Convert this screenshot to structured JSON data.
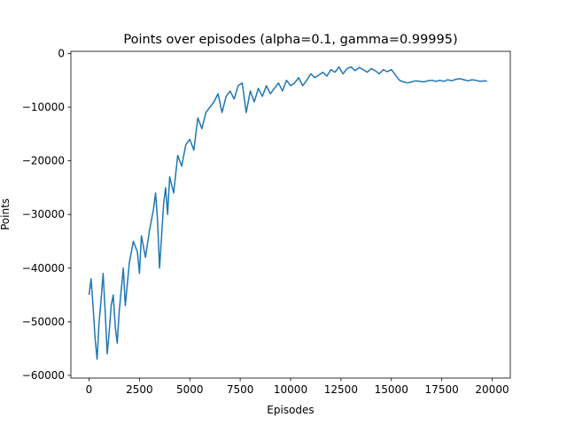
{
  "chart_data": {
    "type": "line",
    "title": "Points over episodes (alpha=0.1, gamma=0.99995)",
    "xlabel": "Episodes",
    "ylabel": "Points",
    "xlim": [
      -900,
      20900
    ],
    "ylim": [
      -60500,
      400
    ],
    "grid": false,
    "legend": "none",
    "xticks": [
      0,
      2500,
      5000,
      7500,
      10000,
      12500,
      15000,
      17500,
      20000
    ],
    "yticks": [
      0,
      -10000,
      -20000,
      -30000,
      -40000,
      -50000,
      -60000
    ],
    "xtick_labels": [
      "0",
      "2500",
      "5000",
      "7500",
      "10000",
      "12500",
      "15000",
      "17500",
      "20000"
    ],
    "ytick_labels": [
      "0",
      "−10000",
      "−20000",
      "−30000",
      "−40000",
      "−50000",
      "−60000"
    ],
    "series": [
      {
        "color": "#1f77b4",
        "x": [
          0,
          100,
          200,
          300,
          400,
          500,
          600,
          700,
          800,
          900,
          1000,
          1100,
          1200,
          1300,
          1400,
          1500,
          1600,
          1700,
          1800,
          1900,
          2000,
          2200,
          2400,
          2500,
          2600,
          2800,
          3000,
          3200,
          3300,
          3400,
          3500,
          3600,
          3700,
          3800,
          3900,
          4000,
          4200,
          4400,
          4600,
          4800,
          5000,
          5200,
          5400,
          5600,
          5800,
          6000,
          6200,
          6400,
          6600,
          6800,
          7000,
          7200,
          7400,
          7600,
          7800,
          8000,
          8200,
          8400,
          8600,
          8800,
          9000,
          9200,
          9400,
          9600,
          9800,
          10000,
          10200,
          10400,
          10600,
          10800,
          11000,
          11200,
          11400,
          11600,
          11800,
          12000,
          12200,
          12400,
          12600,
          12800,
          13000,
          13200,
          13400,
          13600,
          13800,
          14000,
          14200,
          14400,
          14600,
          14800,
          15000,
          15200,
          15400,
          15600,
          15800,
          16000,
          16200,
          16400,
          16600,
          16800,
          17000,
          17200,
          17400,
          17600,
          17800,
          18000,
          18200,
          18400,
          18600,
          18800,
          19000,
          19200,
          19400,
          19600,
          19750
        ],
        "y": [
          -45000,
          -42000,
          -47000,
          -53000,
          -57000,
          -50000,
          -46000,
          -41000,
          -48000,
          -56000,
          -52000,
          -47000,
          -45000,
          -51000,
          -54000,
          -48000,
          -44000,
          -40000,
          -47000,
          -43000,
          -39000,
          -35000,
          -37000,
          -41000,
          -34000,
          -38000,
          -33000,
          -29000,
          -26000,
          -31000,
          -40000,
          -34000,
          -28000,
          -25000,
          -30000,
          -23000,
          -26000,
          -19000,
          -21000,
          -17000,
          -16000,
          -18000,
          -12000,
          -14000,
          -11000,
          -10000,
          -9000,
          -7500,
          -11000,
          -8000,
          -7000,
          -8500,
          -6000,
          -5500,
          -11000,
          -7000,
          -9000,
          -6500,
          -8000,
          -6000,
          -7500,
          -6500,
          -5500,
          -7000,
          -5000,
          -6000,
          -5500,
          -4500,
          -6000,
          -5000,
          -3800,
          -4500,
          -4000,
          -3500,
          -4200,
          -3000,
          -3500,
          -2500,
          -3800,
          -2800,
          -2500,
          -3200,
          -2600,
          -3000,
          -3500,
          -2800,
          -3200,
          -3800,
          -3000,
          -3400,
          -3000,
          -4000,
          -5000,
          -5300,
          -5500,
          -5300,
          -5100,
          -5200,
          -5300,
          -5100,
          -5000,
          -5200,
          -5000,
          -5200,
          -4900,
          -5100,
          -4800,
          -4700,
          -4900,
          -5100,
          -4900,
          -5000,
          -5200,
          -5100,
          -5200
        ]
      }
    ]
  }
}
